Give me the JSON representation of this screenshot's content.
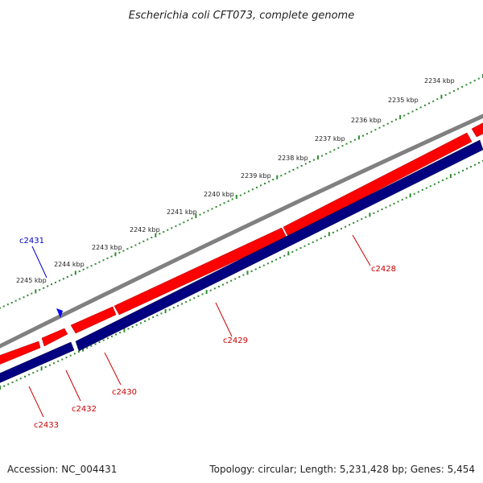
{
  "title": "Escherichia coli CFT073, complete genome",
  "footer": {
    "accession": "Accession: NC_004431",
    "summary": "Topology: circular; Length: 5,231,428 bp; Genes: 5,454"
  },
  "scale": {
    "unit": "kbp",
    "major_ticks": [
      "2234 kbp",
      "2235 kbp",
      "2236 kbp",
      "2237 kbp",
      "2238 kbp",
      "2239 kbp",
      "2240 kbp",
      "2241 kbp",
      "2242 kbp",
      "2243 kbp",
      "2244 kbp",
      "2245 kbp"
    ]
  },
  "colors": {
    "backbone": "#7f7f7f",
    "forward_strand": "#ff0000",
    "reverse_strand": "#000080",
    "forward_label": "#0000cc",
    "reverse_label": "#cc0000",
    "tick": "#2e8b2e"
  },
  "genes": [
    {
      "id": "c2428",
      "label": "c2428",
      "strand": "reverse"
    },
    {
      "id": "c2429",
      "label": "c2429",
      "strand": "reverse"
    },
    {
      "id": "c2430",
      "label": "c2430",
      "strand": "reverse"
    },
    {
      "id": "c2431",
      "label": "c2431",
      "strand": "forward"
    },
    {
      "id": "c2432",
      "label": "c2432",
      "strand": "reverse"
    },
    {
      "id": "c2433",
      "label": "c2433",
      "strand": "reverse"
    }
  ]
}
